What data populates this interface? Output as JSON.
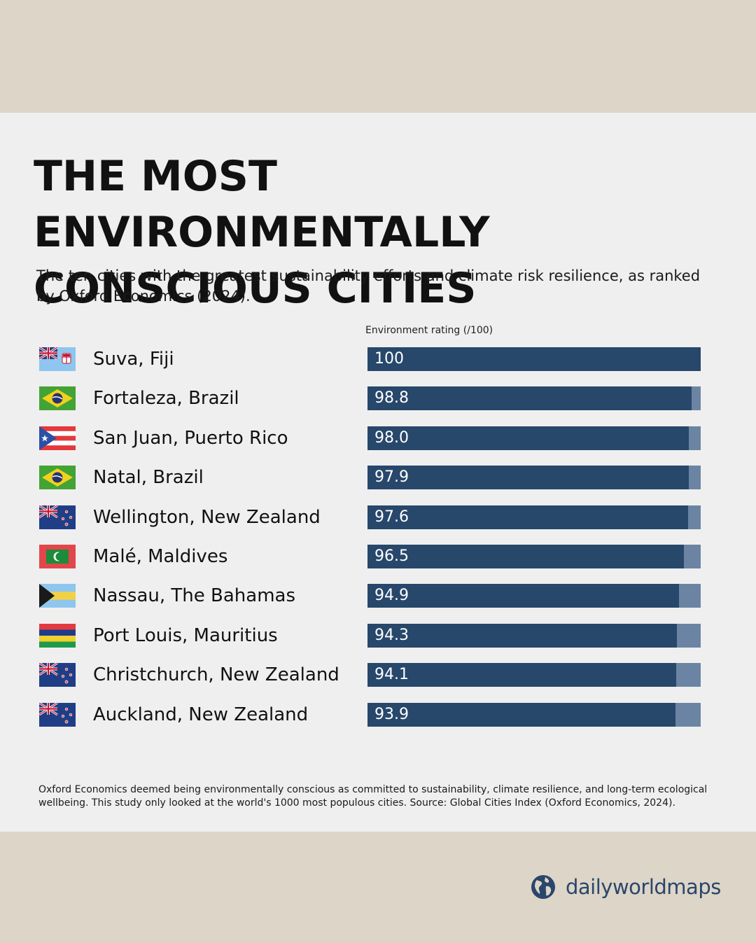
{
  "title_line1": "THE MOST ENVIRONMENTALLY",
  "title_line2": "CONSCIOUS CITIES",
  "subtitle": "The ten cities with the greatest sustainability efforts and climate risk resilience, as ranked by Oxford Economics (2024).",
  "footnote": "Oxford Economics deemed being environmentally conscious as committed to sustainability, climate resilience, and long-term ecological wellbeing. This study only looked at the world's 1000 most populous cities. Source: Global Cities Index (Oxford Economics, 2024).",
  "brand": "dailyworldmaps",
  "colors": {
    "background": "#ddd5c7",
    "panel": "#efefef",
    "bar": "#27476b",
    "bar_remainder": "#6b84a3",
    "brand": "#2a466c"
  },
  "chart_data": {
    "type": "bar",
    "orientation": "horizontal",
    "xlabel": "Environment rating (/100)",
    "xlim": [
      0,
      100
    ],
    "categories": [
      "Suva, Fiji",
      "Fortaleza, Brazil",
      "San Juan, Puerto Rico",
      "Natal, Brazil",
      "Wellington, New Zealand",
      "Malé, Maldives",
      "Nassau, The Bahamas",
      "Port Louis, Mauritius",
      "Christchurch, New Zealand",
      "Auckland, New Zealand"
    ],
    "values": [
      100,
      98.8,
      98.0,
      97.9,
      97.6,
      96.5,
      94.9,
      94.3,
      94.1,
      93.9
    ],
    "value_labels": [
      "100",
      "98.8",
      "98.0",
      "97.9",
      "97.6",
      "96.5",
      "94.9",
      "94.3",
      "94.1",
      "93.9"
    ],
    "flags": [
      "fiji-flag-icon",
      "brazil-flag-icon",
      "puerto-rico-flag-icon",
      "brazil-flag-icon",
      "new-zealand-flag-icon",
      "maldives-flag-icon",
      "bahamas-flag-icon",
      "mauritius-flag-icon",
      "new-zealand-flag-icon",
      "new-zealand-flag-icon"
    ]
  }
}
